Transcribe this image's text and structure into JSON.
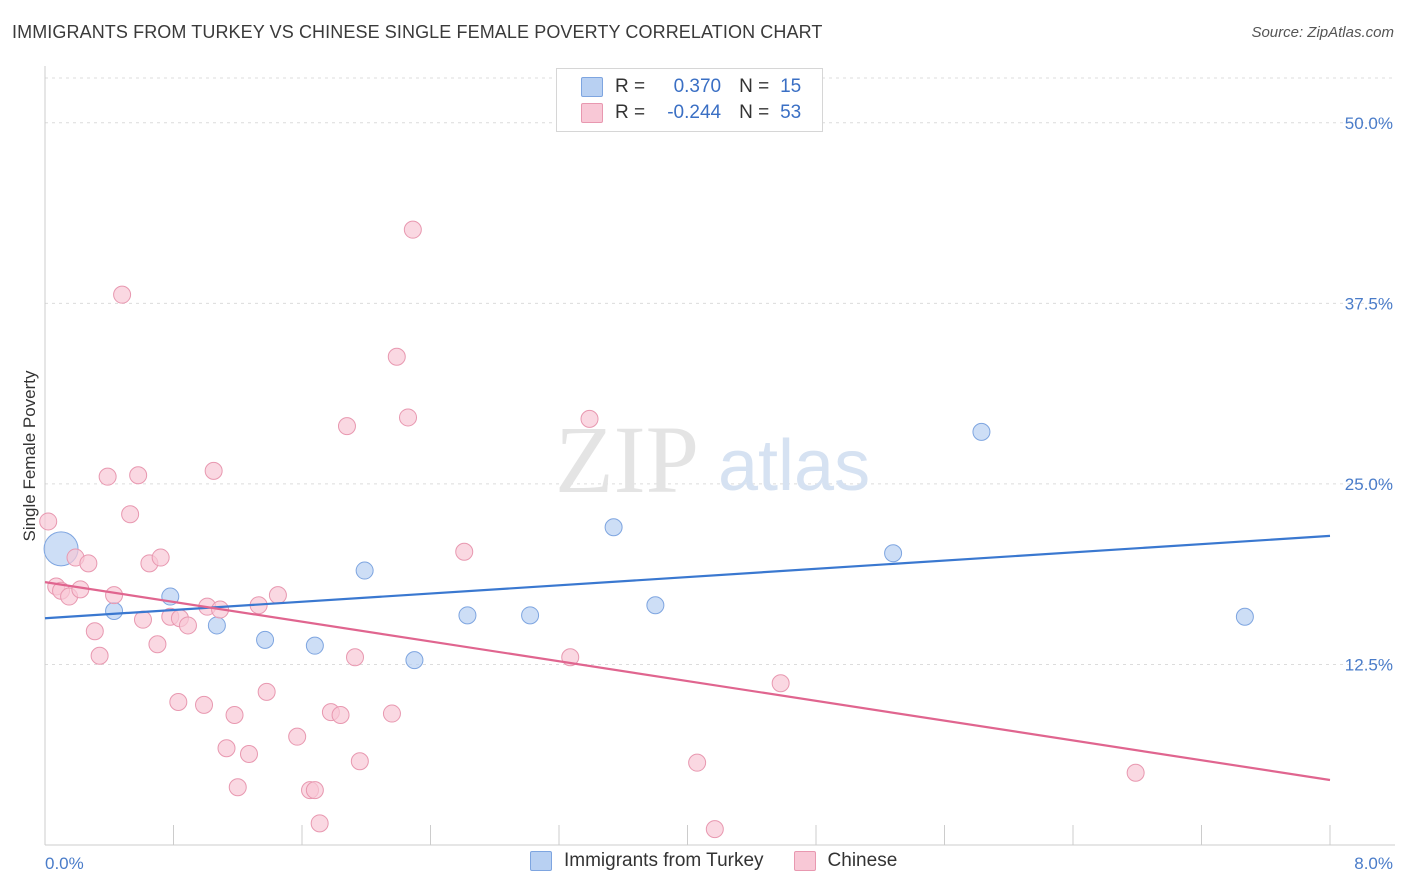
{
  "title": "IMMIGRANTS FROM TURKEY VS CHINESE SINGLE FEMALE POVERTY CORRELATION CHART",
  "source": "Source: ZipAtlas.com",
  "watermark": {
    "zip": "ZIP",
    "atlas": "atlas"
  },
  "legend": {
    "r_label": "R =",
    "n_label": "N =",
    "rows": [
      {
        "r": "0.370",
        "n": "15",
        "fill": "#b8d0f2",
        "stroke": "#7ea5e0"
      },
      {
        "r": "-0.244",
        "n": "53",
        "fill": "#f8c8d6",
        "stroke": "#e898b0"
      }
    ]
  },
  "bottom_legend": [
    "Immigrants from Turkey",
    "Chinese"
  ],
  "chart_data": {
    "type": "scatter",
    "xlabel": "",
    "ylabel": "Single Female Poverty",
    "xlim": [
      0,
      8
    ],
    "ylim": [
      0,
      50
    ],
    "x_tick_labels": [
      "0.0%",
      "8.0%"
    ],
    "y_ticks": [
      12.5,
      25.0,
      37.5,
      50.0
    ],
    "y_tick_labels": [
      "12.5%",
      "25.0%",
      "37.5%",
      "50.0%"
    ],
    "grid": true,
    "series": [
      {
        "name": "Immigrants from Turkey",
        "color": "#3a78d0",
        "fill": "#b8d0f2",
        "stroke": "#7ea5e0",
        "points": [
          {
            "x": 0.1,
            "y": 20.5,
            "size": "large"
          },
          {
            "x": 0.43,
            "y": 16.2
          },
          {
            "x": 0.78,
            "y": 17.2
          },
          {
            "x": 1.07,
            "y": 15.2
          },
          {
            "x": 1.37,
            "y": 14.2
          },
          {
            "x": 1.68,
            "y": 13.8
          },
          {
            "x": 1.99,
            "y": 19.0
          },
          {
            "x": 2.3,
            "y": 12.8
          },
          {
            "x": 2.63,
            "y": 15.9
          },
          {
            "x": 3.02,
            "y": 15.9
          },
          {
            "x": 3.54,
            "y": 22.0
          },
          {
            "x": 3.8,
            "y": 16.6
          },
          {
            "x": 5.28,
            "y": 20.2
          },
          {
            "x": 5.83,
            "y": 28.6
          },
          {
            "x": 7.47,
            "y": 15.8
          }
        ],
        "trend": {
          "x1": 0,
          "y1": 15.7,
          "x2": 8,
          "y2": 21.4
        }
      },
      {
        "name": "Chinese",
        "color": "#e0658f",
        "fill": "#f8c8d6",
        "stroke": "#e898b0",
        "points": [
          {
            "x": 0.02,
            "y": 22.4
          },
          {
            "x": 0.07,
            "y": 17.9
          },
          {
            "x": 0.1,
            "y": 17.6
          },
          {
            "x": 0.15,
            "y": 17.2
          },
          {
            "x": 0.19,
            "y": 19.9
          },
          {
            "x": 0.22,
            "y": 17.7
          },
          {
            "x": 0.27,
            "y": 19.5
          },
          {
            "x": 0.31,
            "y": 14.8
          },
          {
            "x": 0.34,
            "y": 13.1
          },
          {
            "x": 0.39,
            "y": 25.5
          },
          {
            "x": 0.43,
            "y": 17.3
          },
          {
            "x": 0.48,
            "y": 38.1
          },
          {
            "x": 0.53,
            "y": 22.9
          },
          {
            "x": 0.58,
            "y": 25.6
          },
          {
            "x": 0.61,
            "y": 15.6
          },
          {
            "x": 0.65,
            "y": 19.5
          },
          {
            "x": 0.7,
            "y": 13.9
          },
          {
            "x": 0.72,
            "y": 19.9
          },
          {
            "x": 0.78,
            "y": 15.8
          },
          {
            "x": 0.83,
            "y": 9.9
          },
          {
            "x": 0.84,
            "y": 15.7
          },
          {
            "x": 0.89,
            "y": 15.2
          },
          {
            "x": 0.99,
            "y": 9.7
          },
          {
            "x": 1.01,
            "y": 16.5
          },
          {
            "x": 1.05,
            "y": 25.9
          },
          {
            "x": 1.09,
            "y": 16.3
          },
          {
            "x": 1.13,
            "y": 6.7
          },
          {
            "x": 1.18,
            "y": 9.0
          },
          {
            "x": 1.2,
            "y": 4.0
          },
          {
            "x": 1.27,
            "y": 6.3
          },
          {
            "x": 1.33,
            "y": 16.6
          },
          {
            "x": 1.38,
            "y": 10.6
          },
          {
            "x": 1.45,
            "y": 17.3
          },
          {
            "x": 1.57,
            "y": 7.5
          },
          {
            "x": 1.65,
            "y": 3.8
          },
          {
            "x": 1.68,
            "y": 3.8
          },
          {
            "x": 1.71,
            "y": 1.5
          },
          {
            "x": 1.78,
            "y": 9.2
          },
          {
            "x": 1.84,
            "y": 9.0
          },
          {
            "x": 1.88,
            "y": 29.0
          },
          {
            "x": 1.93,
            "y": 13.0
          },
          {
            "x": 1.96,
            "y": 5.8
          },
          {
            "x": 2.16,
            "y": 9.1
          },
          {
            "x": 2.19,
            "y": 33.8
          },
          {
            "x": 2.26,
            "y": 29.6
          },
          {
            "x": 2.29,
            "y": 42.6
          },
          {
            "x": 2.61,
            "y": 20.3
          },
          {
            "x": 3.27,
            "y": 13.0
          },
          {
            "x": 3.39,
            "y": 29.5
          },
          {
            "x": 4.06,
            "y": 5.7
          },
          {
            "x": 4.17,
            "y": 1.1
          },
          {
            "x": 4.58,
            "y": 11.2
          },
          {
            "x": 6.79,
            "y": 5.0
          }
        ],
        "trend": {
          "x1": 0,
          "y1": 18.2,
          "x2": 8,
          "y2": 4.5
        }
      }
    ]
  }
}
